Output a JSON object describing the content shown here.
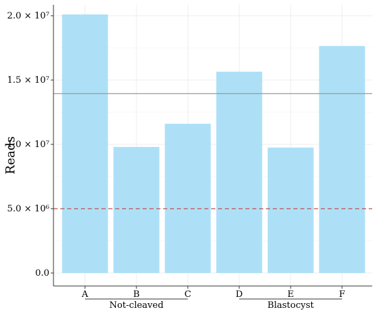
{
  "chart_data": {
    "type": "bar",
    "title": "",
    "xlabel": "",
    "ylabel": "Reads",
    "categories": [
      "A",
      "B",
      "C",
      "D",
      "E",
      "F"
    ],
    "values": [
      20100000,
      9800000,
      11600000,
      15650000,
      9750000,
      17650000
    ],
    "ylim": [
      0,
      21000000
    ],
    "yticks": [
      {
        "value": 0,
        "label": "0.0"
      },
      {
        "value": 5000000,
        "label": "5.0 × 10⁶"
      },
      {
        "value": 10000000,
        "label": "1.0 × 10⁷"
      },
      {
        "value": 15000000,
        "label": "1.5 × 10⁷"
      },
      {
        "value": 20000000,
        "label": "2.0 × 10⁷"
      }
    ],
    "grid": true,
    "bar_color": "#ade0f7",
    "reference_lines": [
      {
        "value": 13950000,
        "style": "solid",
        "color": "#999999"
      },
      {
        "value": 5000000,
        "style": "dashed",
        "color": "#c0504d"
      }
    ],
    "groups": [
      {
        "label": "Not-cleaved",
        "categories": [
          "A",
          "B",
          "C"
        ]
      },
      {
        "label": "Blastocyst",
        "categories": [
          "D",
          "E",
          "F"
        ]
      }
    ]
  }
}
